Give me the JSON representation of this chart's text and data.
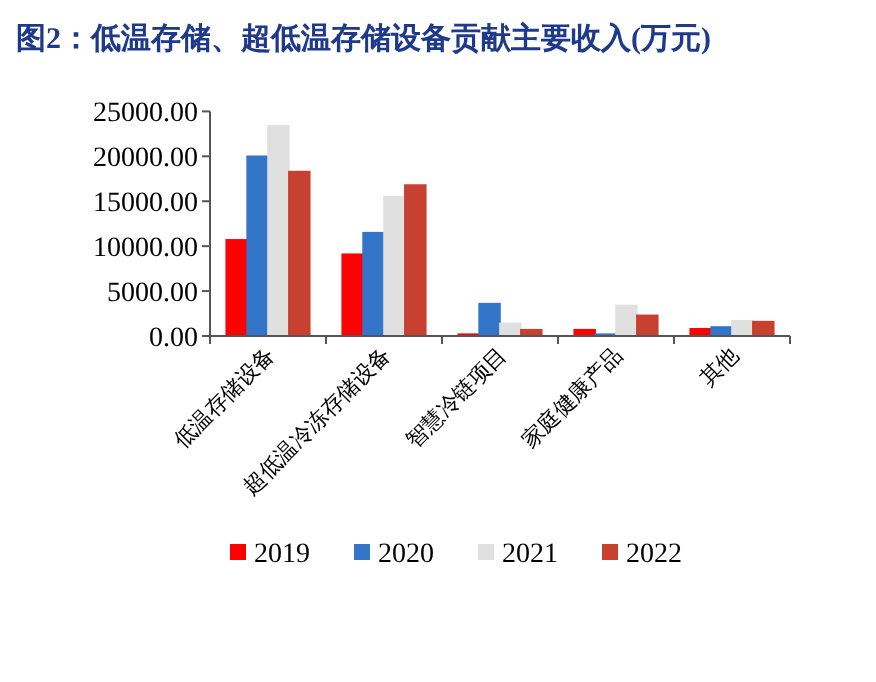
{
  "chart_data": {
    "type": "bar",
    "title": "图2：低温存储、超低温存储设备贡献主要收入(万元)",
    "categories": [
      "低温存储设备",
      "超低温冷冻存储设备",
      "智慧冷链项目",
      "家庭健康产品",
      "其他"
    ],
    "series": [
      {
        "name": "2019",
        "color": "#ff0000",
        "values": [
          10700,
          9100,
          200,
          700,
          800
        ]
      },
      {
        "name": "2020",
        "color": "#3375c8",
        "values": [
          20000,
          11500,
          3600,
          200,
          1000
        ]
      },
      {
        "name": "2021",
        "color": "#e0e0e0",
        "values": [
          23400,
          15500,
          1400,
          3400,
          1700
        ]
      },
      {
        "name": "2022",
        "color": "#c8402f",
        "values": [
          18300,
          16800,
          700,
          2300,
          1600
        ]
      }
    ],
    "ylim": [
      0,
      25000
    ],
    "yticks": [
      {
        "value": 0,
        "label": "0.00"
      },
      {
        "value": 5000,
        "label": "5000.00"
      },
      {
        "value": 10000,
        "label": "10000.00"
      },
      {
        "value": 15000,
        "label": "15000.00"
      },
      {
        "value": 20000,
        "label": "20000.00"
      },
      {
        "value": 25000,
        "label": "25000.00"
      }
    ],
    "grid": false,
    "legend": "bottom"
  }
}
